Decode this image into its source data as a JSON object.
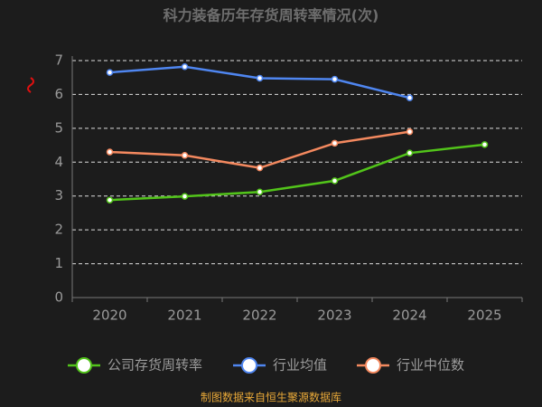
{
  "chart_data": {
    "type": "line",
    "title": "科力装备历年存货周转率情况(次)",
    "categories": [
      "2020",
      "2021",
      "2022",
      "2023",
      "2024",
      "2025"
    ],
    "series": [
      {
        "name": "公司存货周转率",
        "color": "#52c41a",
        "values": [
          2.88,
          2.99,
          3.12,
          3.45,
          4.27,
          4.52
        ]
      },
      {
        "name": "行业均值",
        "color": "#4f86f0",
        "values": [
          6.65,
          6.82,
          6.48,
          6.45,
          5.9,
          null
        ]
      },
      {
        "name": "行业中位数",
        "color": "#f4895f",
        "values": [
          4.3,
          4.2,
          3.83,
          4.56,
          4.9,
          null
        ]
      }
    ],
    "ylim": [
      0,
      7
    ],
    "yticks": [
      0,
      1,
      2,
      3,
      4,
      5,
      6,
      7
    ],
    "grid": true,
    "source": "制图数据来自恒生聚源数据库"
  }
}
